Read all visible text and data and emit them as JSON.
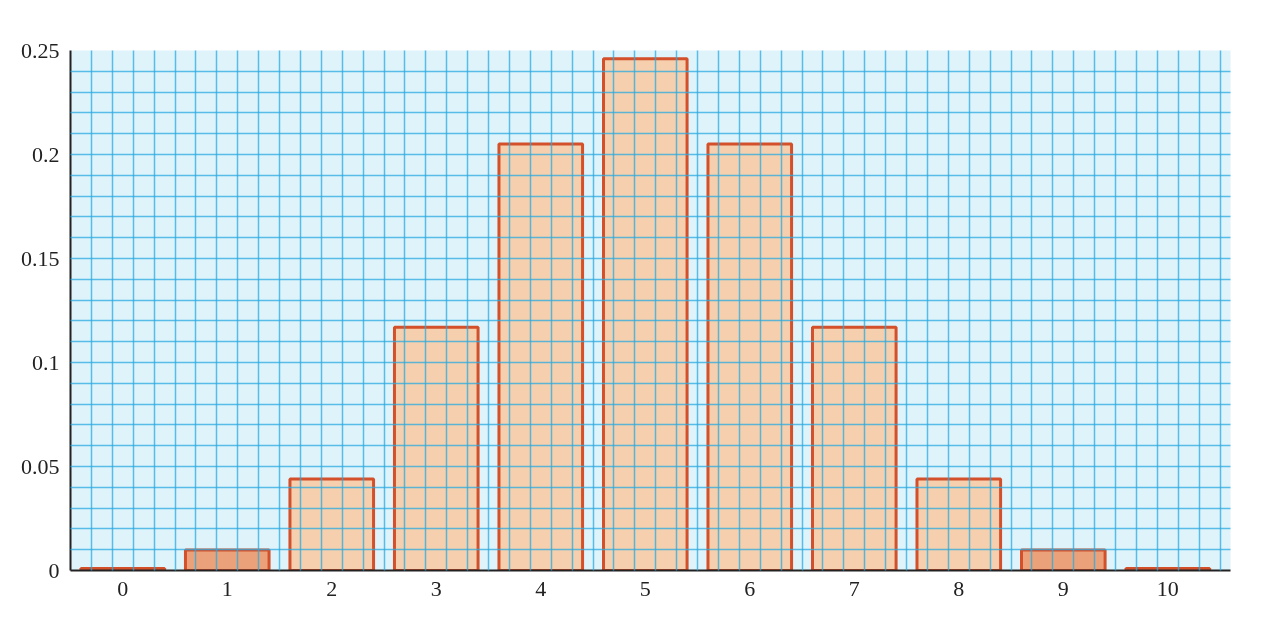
{
  "chart_data": {
    "type": "bar",
    "categories": [
      "0",
      "1",
      "2",
      "3",
      "4",
      "5",
      "6",
      "7",
      "8",
      "9",
      "10"
    ],
    "values": [
      0.001,
      0.0098,
      0.044,
      0.117,
      0.205,
      0.246,
      0.205,
      0.117,
      0.044,
      0.0098,
      0.001
    ],
    "colors": [
      "#f5cfae",
      "#eba27a",
      "#f5cfae",
      "#f5cfae",
      "#f5cfae",
      "#f5cfae",
      "#f5cfae",
      "#f5cfae",
      "#f5cfae",
      "#eba27a",
      "#f5cfae"
    ],
    "ylim": [
      0,
      0.25
    ],
    "yticks": [
      0,
      0.05,
      0.1,
      0.15,
      0.2,
      0.25
    ],
    "grid": true
  }
}
